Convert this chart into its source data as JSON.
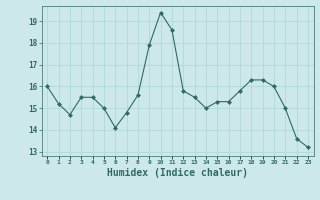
{
  "x": [
    0,
    1,
    2,
    3,
    4,
    5,
    6,
    7,
    8,
    9,
    10,
    11,
    12,
    13,
    14,
    15,
    16,
    17,
    18,
    19,
    20,
    21,
    22,
    23
  ],
  "y": [
    16.0,
    15.2,
    14.7,
    15.5,
    15.5,
    15.0,
    14.1,
    14.8,
    15.6,
    17.9,
    19.4,
    18.6,
    15.8,
    15.5,
    15.0,
    15.3,
    15.3,
    15.8,
    16.3,
    16.3,
    16.0,
    15.0,
    13.6,
    13.2
  ],
  "line_color": "#2e6b63",
  "marker": "D",
  "marker_size": 2.0,
  "bg_color": "#cde8e8",
  "grid_color": "#b0d8d8",
  "xlabel": "Humidex (Indice chaleur)",
  "xlabel_fontsize": 7,
  "xlabel_color": "#2e6b63",
  "tick_color": "#2e6b63",
  "ylim": [
    12.8,
    19.7
  ],
  "yticks": [
    13,
    14,
    15,
    16,
    17,
    18,
    19
  ],
  "xtick_labels": [
    "0",
    "1",
    "2",
    "3",
    "4",
    "5",
    "6",
    "7",
    "8",
    "9",
    "10",
    "11",
    "12",
    "13",
    "14",
    "15",
    "16",
    "17",
    "18",
    "19",
    "20",
    "21",
    "22",
    "23"
  ]
}
